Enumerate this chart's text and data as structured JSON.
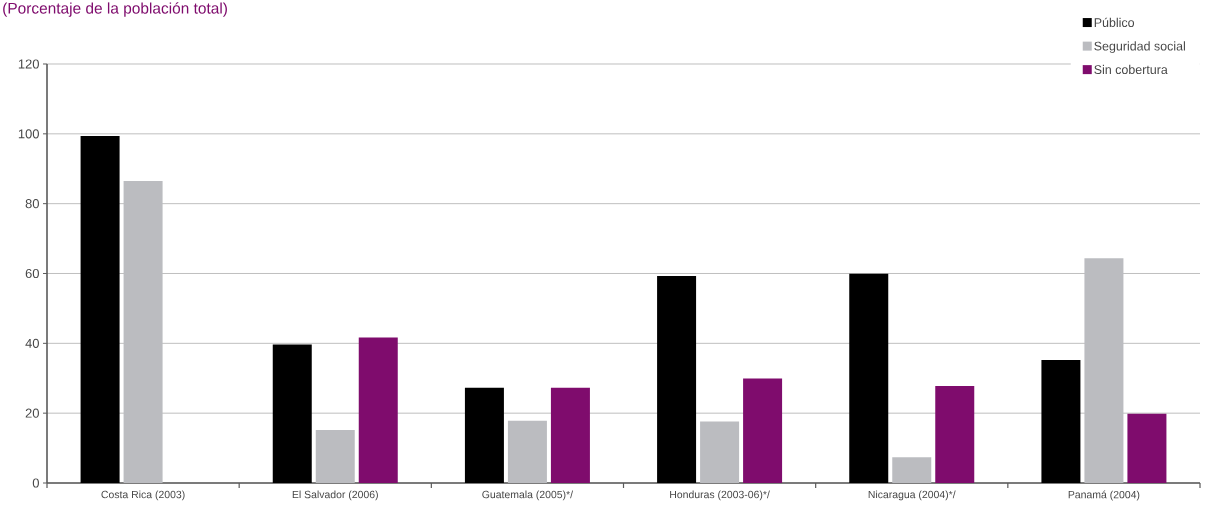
{
  "chart_data": {
    "type": "bar",
    "title": "(Porcentaje de la población total)",
    "categories": [
      "Costa Rica (2003)",
      "El Salvador (2006)",
      "Guatemala (2005)*/",
      "Honduras (2003-06)*/",
      "Nicaragua (2004)*/",
      "Panamá (2004)"
    ],
    "series": [
      {
        "name": "Público",
        "color": "#000000",
        "values": [
          99.4,
          39.7,
          27.3,
          59.3,
          59.9,
          35.2
        ]
      },
      {
        "name": "Seguridad social",
        "color": "#bbbcc0",
        "values": [
          86.5,
          15.2,
          17.8,
          17.6,
          7.4,
          64.4
        ]
      },
      {
        "name": "Sin cobertura",
        "color": "#7f0c6d",
        "values": [
          null,
          41.7,
          27.3,
          29.9,
          27.8,
          19.8
        ]
      }
    ],
    "ylim": [
      0,
      120
    ],
    "yticks": [
      0,
      20,
      40,
      60,
      80,
      100,
      120
    ],
    "grid": "y",
    "legend": "top right"
  }
}
